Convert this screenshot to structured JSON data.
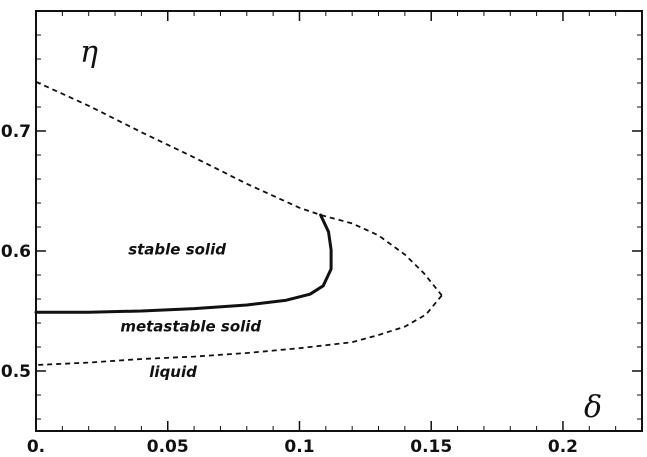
{
  "chart_data": {
    "type": "line",
    "title": "",
    "xlabel": "δ",
    "ylabel": "η",
    "xlim": [
      0,
      0.23
    ],
    "ylim": [
      0.45,
      0.8
    ],
    "x_ticks": [
      0,
      0.05,
      0.1,
      0.15,
      0.2
    ],
    "x_tick_labels": [
      "0.",
      "0.05",
      "0.1",
      "0.15",
      "0.2"
    ],
    "y_ticks": [
      0.5,
      0.6,
      0.7
    ],
    "y_tick_labels": [
      "0.5",
      "0.6",
      "0.7"
    ],
    "grid": false,
    "region_labels": [
      {
        "text": "stable solid",
        "x": 0.035,
        "y": 0.597
      },
      {
        "text": "metastable solid",
        "x": 0.032,
        "y": 0.533
      },
      {
        "text": "liquid",
        "x": 0.043,
        "y": 0.495
      }
    ],
    "series": [
      {
        "style": "dashed",
        "points": [
          [
            0,
            0.741
          ],
          [
            0.02,
            0.721
          ],
          [
            0.04,
            0.699
          ],
          [
            0.06,
            0.678
          ],
          [
            0.08,
            0.656
          ],
          [
            0.1,
            0.636
          ],
          [
            0.108,
            0.63
          ],
          [
            0.12,
            0.623
          ],
          [
            0.13,
            0.613
          ],
          [
            0.14,
            0.597
          ],
          [
            0.147,
            0.582
          ],
          [
            0.154,
            0.563
          ]
        ]
      },
      {
        "style": "dashed",
        "points": [
          [
            0.154,
            0.563
          ],
          [
            0.148,
            0.547
          ],
          [
            0.14,
            0.537
          ],
          [
            0.13,
            0.53
          ],
          [
            0.12,
            0.524
          ],
          [
            0.1,
            0.519
          ],
          [
            0.08,
            0.515
          ],
          [
            0.06,
            0.512
          ],
          [
            0.04,
            0.51
          ],
          [
            0.02,
            0.507
          ],
          [
            0,
            0.505
          ]
        ]
      },
      {
        "style": "solid",
        "points": [
          [
            0,
            0.549
          ],
          [
            0.02,
            0.549
          ],
          [
            0.04,
            0.55
          ],
          [
            0.06,
            0.552
          ],
          [
            0.08,
            0.555
          ],
          [
            0.095,
            0.559
          ],
          [
            0.104,
            0.564
          ],
          [
            0.109,
            0.571
          ],
          [
            0.112,
            0.585
          ],
          [
            0.112,
            0.601
          ],
          [
            0.111,
            0.616
          ],
          [
            0.108,
            0.63
          ]
        ]
      }
    ]
  }
}
